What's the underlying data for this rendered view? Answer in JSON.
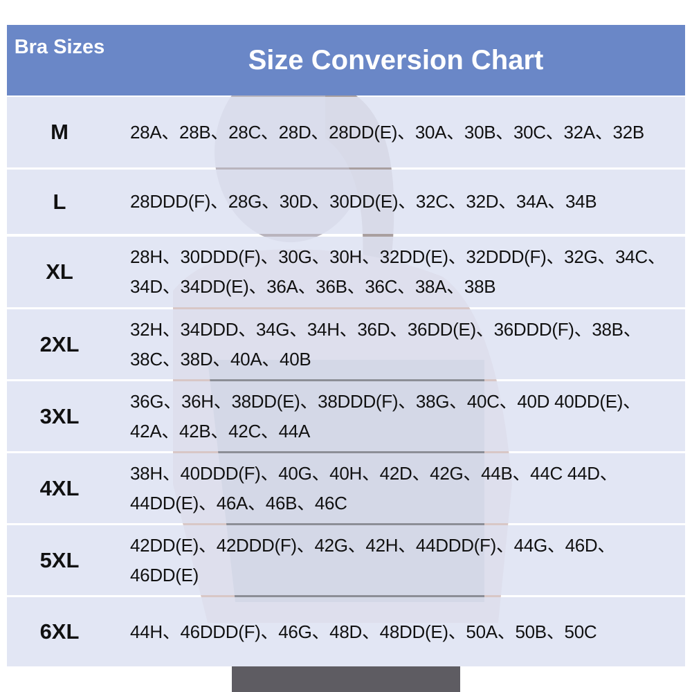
{
  "header": {
    "left_label": "Bra Sizes",
    "title": "Size Conversion Chart"
  },
  "colors": {
    "header_bg": "#6a87c7",
    "row_bg": "#e2e6f3",
    "text": "#111111"
  },
  "rows": [
    {
      "size": "M",
      "bra_sizes": "28A、28B、28C、28D、28DD(E)、30A、30B、30C、32A、32B"
    },
    {
      "size": "L",
      "bra_sizes": "28DDD(F)、28G、30D、30DD(E)、32C、32D、34A、34B"
    },
    {
      "size": "XL",
      "bra_sizes": "28H、30DDD(F)、30G、30H、32DD(E)、32DDD(F)、32G、34C、34D、34DD(E)、36A、36B、36C、38A、38B"
    },
    {
      "size": "2XL",
      "bra_sizes": "32H、34DDD、34G、34H、36D、36DD(E)、36DDD(F)、38B、38C、38D、40A、40B"
    },
    {
      "size": "3XL",
      "bra_sizes": "36G、36H、38DD(E)、38DDD(F)、38G、40C、40D 40DD(E)、42A、42B、42C、44A"
    },
    {
      "size": "4XL",
      "bra_sizes": "38H、40DDD(F)、40G、40H、42D、42G、44B、44C 44D、44DD(E)、46A、46B、46C"
    },
    {
      "size": "5XL",
      "bra_sizes": "42DD(E)、42DDD(F)、42G、42H、44DDD(F)、44G、46D、46DD(E)"
    },
    {
      "size": "6XL",
      "bra_sizes": "44H、46DDD(F)、46G、48D、48DD(E)、50A、50B、50C"
    }
  ]
}
